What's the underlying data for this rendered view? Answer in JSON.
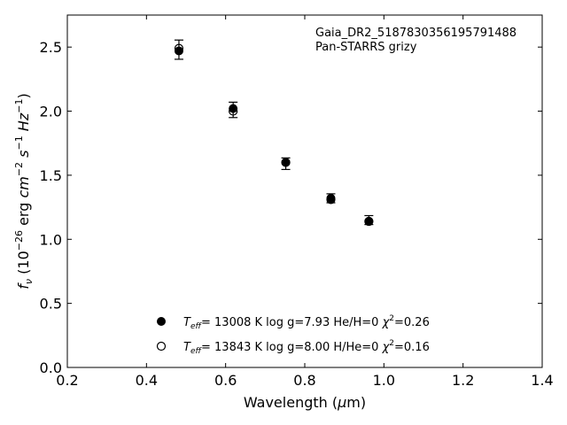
{
  "chart_data": {
    "type": "scatter",
    "title": "",
    "annotation": [
      "Gaia_DR2_5187830356195791488",
      "Pan-STARRS grizy"
    ],
    "xlabel": {
      "prefix": "Wavelength (",
      "greek": "μ",
      "suffix": "m)"
    },
    "ylabel": "f_ν (10^-26 erg cm^-2 s^-1 Hz^-1)",
    "xlim": [
      0.2,
      1.4
    ],
    "ylim": [
      0.0,
      2.75
    ],
    "xticks": [
      0.2,
      0.4,
      0.6,
      0.8,
      1.0,
      1.2,
      1.4
    ],
    "yticks": [
      0.0,
      0.5,
      1.0,
      1.5,
      2.0,
      2.5
    ],
    "grid": false,
    "legend_position": "lower-center",
    "observed": {
      "x": [
        0.482,
        0.619,
        0.752,
        0.866,
        0.962
      ],
      "y": [
        2.48,
        2.01,
        1.59,
        1.32,
        1.15
      ],
      "yerr": [
        0.075,
        0.06,
        0.045,
        0.035,
        0.035
      ]
    },
    "series": [
      {
        "name": "T_eff= 13008 K  log g=7.93  He/H=0  χ²=0.26",
        "legend": {
          "teff": "= 13008 K  log g=7.93  He/H=0  ",
          "chi": "=0.26"
        },
        "marker": "filled",
        "x": [
          0.482,
          0.619,
          0.752,
          0.866,
          0.962
        ],
        "y": [
          2.47,
          2.02,
          1.6,
          1.32,
          1.14
        ]
      },
      {
        "name": "T_eff= 13843 K  log g=8.00  H/He=0  χ²=0.16",
        "legend": {
          "teff": "= 13843 K  log g=8.00  H/He=0  ",
          "chi": "=0.16"
        },
        "marker": "open",
        "x": [
          0.482,
          0.619,
          0.752,
          0.866,
          0.962
        ],
        "y": [
          2.49,
          2.0,
          1.6,
          1.31,
          1.14
        ]
      }
    ],
    "colors": {
      "marker": "#000000",
      "axes": "#000000",
      "background": "#ffffff"
    }
  }
}
